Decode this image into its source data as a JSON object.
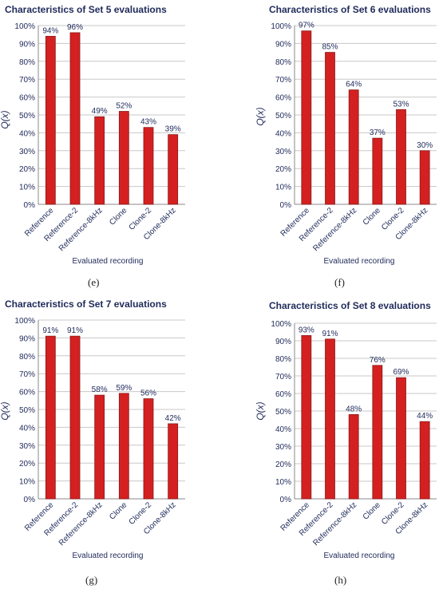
{
  "chart_data": [
    {
      "type": "bar",
      "title": "Characteristics of Set 5 evaluations",
      "ylabel": "Q(x)",
      "xlabel": "Evaluated recording",
      "caption": "(e)",
      "categories": [
        "Reference",
        "Reference-2",
        "Reference-8kHz",
        "Clone",
        "Clone-2",
        "Clone-8kHz"
      ],
      "values": [
        94,
        96,
        49,
        52,
        43,
        39
      ],
      "data_labels": [
        "94%",
        "96%",
        "49%",
        "52%",
        "43%",
        "39%"
      ],
      "ylim": [
        0,
        100
      ],
      "yticks": [
        "0%",
        "10%",
        "20%",
        "30%",
        "40%",
        "50%",
        "60%",
        "70%",
        "80%",
        "90%",
        "100%"
      ],
      "grid": true,
      "bar_color": "#d42020"
    },
    {
      "type": "bar",
      "title": "Characteristics of Set 6 evaluations",
      "ylabel": "Q(x)",
      "xlabel": "Evaluated recording",
      "caption": "(f)",
      "categories": [
        "Reference",
        "Reference-2",
        "Reference-8kHz",
        "Clone",
        "Clone-2",
        "Clone-8kHz"
      ],
      "values": [
        97,
        85,
        64,
        37,
        53,
        30
      ],
      "data_labels": [
        "97%",
        "85%",
        "64%",
        "37%",
        "53%",
        "30%"
      ],
      "ylim": [
        0,
        100
      ],
      "yticks": [
        "0%",
        "10%",
        "20%",
        "30%",
        "40%",
        "50%",
        "60%",
        "70%",
        "80%",
        "90%",
        "100%"
      ],
      "grid": true,
      "bar_color": "#d42020"
    },
    {
      "type": "bar",
      "title": "Characteristics of Set 7 evaluations",
      "ylabel": "Q(x)",
      "xlabel": "Evaluated recording",
      "caption": "(g)",
      "categories": [
        "Reference",
        "Reference-2",
        "Reference-8kHz",
        "Clone",
        "Clone-2",
        "Clone-8kHz"
      ],
      "values": [
        91,
        91,
        58,
        59,
        56,
        42
      ],
      "data_labels": [
        "91%",
        "91%",
        "58%",
        "59%",
        "56%",
        "42%"
      ],
      "ylim": [
        0,
        100
      ],
      "yticks": [
        "0%",
        "10%",
        "20%",
        "30%",
        "40%",
        "50%",
        "60%",
        "70%",
        "80%",
        "90%",
        "100%"
      ],
      "grid": true,
      "bar_color": "#d42020"
    },
    {
      "type": "bar",
      "title": "Characteristics of Set 8 evaluations",
      "ylabel": "Q(x)",
      "xlabel": "Evaluated recording",
      "caption": "(h)",
      "categories": [
        "Reference",
        "Reference-2",
        "Reference-8kHz",
        "Clone",
        "Clone-2",
        "Clone-8kHz"
      ],
      "values": [
        93,
        91,
        48,
        76,
        69,
        44
      ],
      "data_labels": [
        "93%",
        "91%",
        "48%",
        "76%",
        "69%",
        "44%"
      ],
      "ylim": [
        0,
        100
      ],
      "yticks": [
        "0%",
        "10%",
        "20%",
        "30%",
        "40%",
        "50%",
        "60%",
        "70%",
        "80%",
        "90%",
        "100%"
      ],
      "grid": true,
      "bar_color": "#d42020"
    }
  ],
  "colors": {
    "title": "#1f2a5a",
    "axis_text": "#1f2a5a",
    "grid": "#c8c8c8",
    "bar": "#d42020",
    "bar_edge": "#8a1a1a"
  }
}
